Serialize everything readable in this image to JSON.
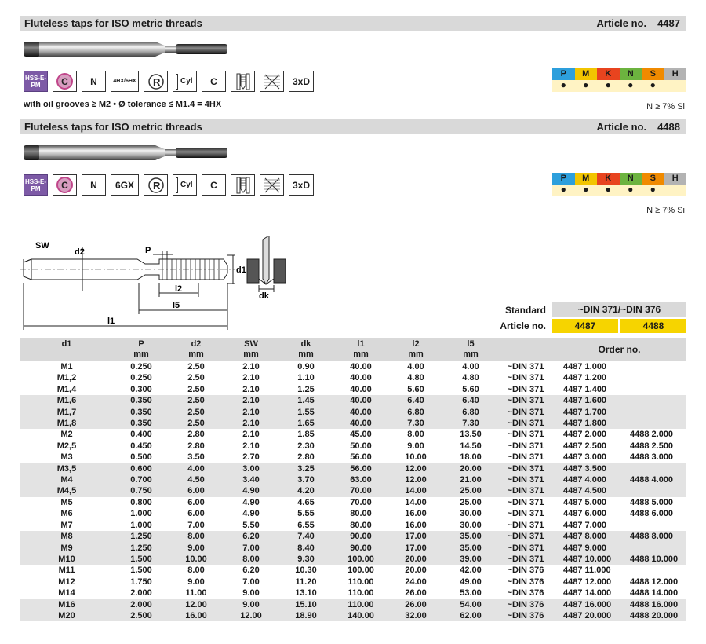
{
  "section1": {
    "title": "Fluteless taps for ISO metric threads",
    "article_label": "Article no.",
    "article_no": "4487",
    "icons": [
      "HSS-E-PM",
      "C",
      "N",
      "4HX/6HX",
      "R",
      "Cyl",
      "C",
      "",
      "",
      "3xD"
    ],
    "subtitle": "with oil grooves ≥ M2 • Ø tolerance ≤ M1.4 = 4HX",
    "si_note": "N ≥ 7% Si"
  },
  "section2": {
    "title": "Fluteless taps for ISO metric threads",
    "article_label": "Article no.",
    "article_no": "4488",
    "icons": [
      "HSS-E-PM",
      "C",
      "N",
      "6GX",
      "R",
      "Cyl",
      "C",
      "",
      "",
      "3xD"
    ],
    "si_note": "N ≥ 7% Si"
  },
  "materials": {
    "letters": [
      "P",
      "M",
      "K",
      "N",
      "S",
      "H"
    ],
    "colors": [
      "#2d9fdc",
      "#f2c500",
      "#e8441f",
      "#6cb33f",
      "#f08a00",
      "#b3b3b3"
    ],
    "dot": "●"
  },
  "drawing": {
    "labels": {
      "sw": "SW",
      "d2": "d2",
      "p": "P",
      "d1": "d1",
      "l2": "l2",
      "l5": "l5",
      "l1": "l1",
      "dk": "dk"
    }
  },
  "standard": {
    "label": "Standard",
    "value": "~DIN 371/~DIN 376",
    "article_label": "Article no.",
    "articles": [
      "4487",
      "4488"
    ]
  },
  "table": {
    "headers": [
      {
        "name": "d1",
        "unit": ""
      },
      {
        "name": "P",
        "unit": "mm"
      },
      {
        "name": "d2",
        "unit": "mm"
      },
      {
        "name": "SW",
        "unit": "mm"
      },
      {
        "name": "dk",
        "unit": "mm"
      },
      {
        "name": "l1",
        "unit": "mm"
      },
      {
        "name": "l2",
        "unit": "mm"
      },
      {
        "name": "l5",
        "unit": "mm"
      },
      {
        "name": "",
        "unit": ""
      }
    ],
    "order_header": "Order no.",
    "rows": [
      [
        "M1",
        "0.250",
        "2.50",
        "2.10",
        "0.90",
        "40.00",
        "4.00",
        "4.00",
        "~DIN 371",
        "4487 1.000",
        ""
      ],
      [
        "M1,2",
        "0.250",
        "2.50",
        "2.10",
        "1.10",
        "40.00",
        "4.80",
        "4.80",
        "~DIN 371",
        "4487 1.200",
        ""
      ],
      [
        "M1,4",
        "0.300",
        "2.50",
        "2.10",
        "1.25",
        "40.00",
        "5.60",
        "5.60",
        "~DIN 371",
        "4487 1.400",
        ""
      ],
      [
        "M1,6",
        "0.350",
        "2.50",
        "2.10",
        "1.45",
        "40.00",
        "6.40",
        "6.40",
        "~DIN 371",
        "4487 1.600",
        ""
      ],
      [
        "M1,7",
        "0.350",
        "2.50",
        "2.10",
        "1.55",
        "40.00",
        "6.80",
        "6.80",
        "~DIN 371",
        "4487 1.700",
        ""
      ],
      [
        "M1,8",
        "0.350",
        "2.50",
        "2.10",
        "1.65",
        "40.00",
        "7.30",
        "7.30",
        "~DIN 371",
        "4487 1.800",
        ""
      ],
      [
        "M2",
        "0.400",
        "2.80",
        "2.10",
        "1.85",
        "45.00",
        "8.00",
        "13.50",
        "~DIN 371",
        "4487 2.000",
        "4488 2.000"
      ],
      [
        "M2,5",
        "0.450",
        "2.80",
        "2.10",
        "2.30",
        "50.00",
        "9.00",
        "14.50",
        "~DIN 371",
        "4487 2.500",
        "4488 2.500"
      ],
      [
        "M3",
        "0.500",
        "3.50",
        "2.70",
        "2.80",
        "56.00",
        "10.00",
        "18.00",
        "~DIN 371",
        "4487 3.000",
        "4488 3.000"
      ],
      [
        "M3,5",
        "0.600",
        "4.00",
        "3.00",
        "3.25",
        "56.00",
        "12.00",
        "20.00",
        "~DIN 371",
        "4487 3.500",
        ""
      ],
      [
        "M4",
        "0.700",
        "4.50",
        "3.40",
        "3.70",
        "63.00",
        "12.00",
        "21.00",
        "~DIN 371",
        "4487 4.000",
        "4488 4.000"
      ],
      [
        "M4,5",
        "0.750",
        "6.00",
        "4.90",
        "4.20",
        "70.00",
        "14.00",
        "25.00",
        "~DIN 371",
        "4487 4.500",
        ""
      ],
      [
        "M5",
        "0.800",
        "6.00",
        "4.90",
        "4.65",
        "70.00",
        "14.00",
        "25.00",
        "~DIN 371",
        "4487 5.000",
        "4488 5.000"
      ],
      [
        "M6",
        "1.000",
        "6.00",
        "4.90",
        "5.55",
        "80.00",
        "16.00",
        "30.00",
        "~DIN 371",
        "4487 6.000",
        "4488 6.000"
      ],
      [
        "M7",
        "1.000",
        "7.00",
        "5.50",
        "6.55",
        "80.00",
        "16.00",
        "30.00",
        "~DIN 371",
        "4487 7.000",
        ""
      ],
      [
        "M8",
        "1.250",
        "8.00",
        "6.20",
        "7.40",
        "90.00",
        "17.00",
        "35.00",
        "~DIN 371",
        "4487 8.000",
        "4488 8.000"
      ],
      [
        "M9",
        "1.250",
        "9.00",
        "7.00",
        "8.40",
        "90.00",
        "17.00",
        "35.00",
        "~DIN 371",
        "4487 9.000",
        ""
      ],
      [
        "M10",
        "1.500",
        "10.00",
        "8.00",
        "9.30",
        "100.00",
        "20.00",
        "39.00",
        "~DIN 371",
        "4487 10.000",
        "4488 10.000"
      ],
      [
        "M11",
        "1.500",
        "8.00",
        "6.20",
        "10.30",
        "100.00",
        "20.00",
        "42.00",
        "~DIN 376",
        "4487 11.000",
        ""
      ],
      [
        "M12",
        "1.750",
        "9.00",
        "7.00",
        "11.20",
        "110.00",
        "24.00",
        "49.00",
        "~DIN 376",
        "4487 12.000",
        "4488 12.000"
      ],
      [
        "M14",
        "2.000",
        "11.00",
        "9.00",
        "13.10",
        "110.00",
        "26.00",
        "53.00",
        "~DIN 376",
        "4487 14.000",
        "4488 14.000"
      ],
      [
        "M16",
        "2.000",
        "12.00",
        "9.00",
        "15.10",
        "110.00",
        "26.00",
        "54.00",
        "~DIN 376",
        "4487 16.000",
        "4488 16.000"
      ],
      [
        "M20",
        "2.500",
        "16.00",
        "12.00",
        "18.90",
        "140.00",
        "32.00",
        "62.00",
        "~DIN 376",
        "4487 20.000",
        "4488 20.000"
      ]
    ]
  }
}
